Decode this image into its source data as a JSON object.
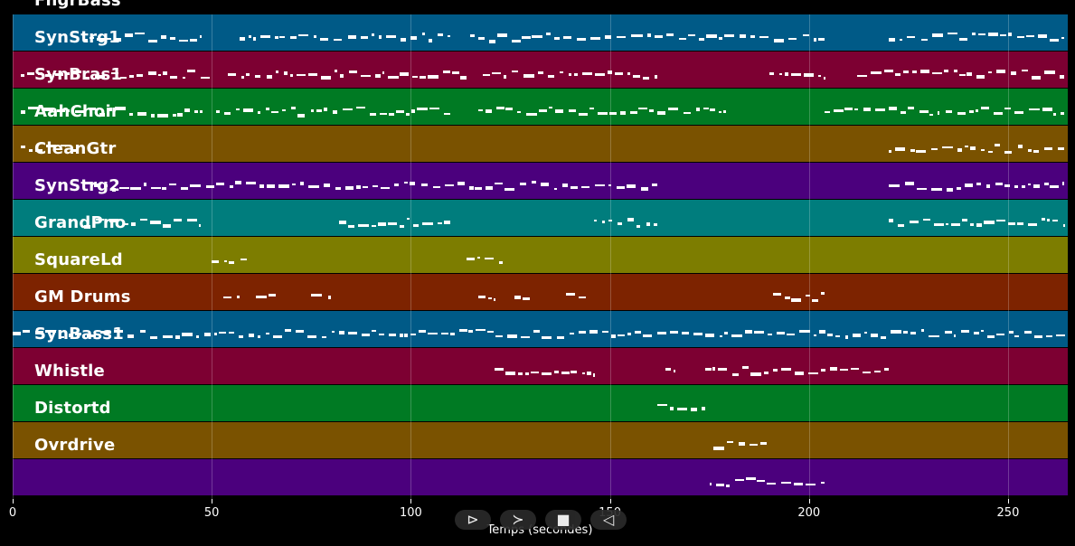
{
  "tracks": [
    {
      "name": "FngrBass",
      "color": "#005a87"
    },
    {
      "name": "SynStrg1",
      "color": "#7d0032"
    },
    {
      "name": "SynBras1",
      "color": "#007a23"
    },
    {
      "name": "AahChoir",
      "color": "#7a5200"
    },
    {
      "name": "CleanGtr",
      "color": "#4b007d"
    },
    {
      "name": "SynStrg2",
      "color": "#007d7d"
    },
    {
      "name": "GrandPno",
      "color": "#7d7d00"
    },
    {
      "name": "SquareLd",
      "color": "#7d2300"
    },
    {
      "name": "GM Drums",
      "color": "#005a87"
    },
    {
      "name": "SynBass1",
      "color": "#7d0032"
    },
    {
      "name": "Whistle",
      "color": "#007a23"
    },
    {
      "name": "Distortd",
      "color": "#7a5200"
    },
    {
      "name": "Ovrdrive",
      "color": "#4b007d"
    }
  ],
  "axis": {
    "xlabel": "Temps (secondes)",
    "xmin": 0,
    "xmax": 265,
    "ticks": [
      0,
      50,
      100,
      150,
      200,
      250
    ]
  },
  "controls": [
    {
      "name": "play-icon",
      "glyph": "⊳"
    },
    {
      "name": "forward-icon",
      "glyph": "≻"
    },
    {
      "name": "stop-icon",
      "glyph": "■"
    },
    {
      "name": "back-icon",
      "glyph": "◁"
    }
  ],
  "activity": [
    [
      [
        18,
        47
      ],
      [
        57,
        110
      ],
      [
        115,
        205
      ],
      [
        220,
        264
      ]
    ],
    [
      [
        2,
        50
      ],
      [
        54,
        114
      ],
      [
        118,
        162
      ],
      [
        190,
        204
      ],
      [
        212,
        264
      ]
    ],
    [
      [
        2,
        48
      ],
      [
        51,
        110
      ],
      [
        117,
        180
      ],
      [
        204,
        264
      ]
    ],
    [
      [
        2,
        18
      ],
      [
        220,
        264
      ]
    ],
    [
      [
        18,
        162
      ],
      [
        220,
        264
      ]
    ],
    [
      [
        18,
        47
      ],
      [
        82,
        110
      ],
      [
        146,
        162
      ],
      [
        220,
        264
      ]
    ],
    [
      [
        50,
        59
      ],
      [
        114,
        123
      ]
    ],
    [
      [
        53,
        57
      ],
      [
        61,
        66
      ],
      [
        75,
        80
      ],
      [
        117,
        121
      ],
      [
        126,
        130
      ],
      [
        139,
        144
      ],
      [
        191,
        204
      ]
    ],
    [
      [
        0,
        265
      ]
    ],
    [
      [
        121,
        146
      ],
      [
        164,
        166
      ],
      [
        174,
        220
      ]
    ],
    [
      [
        162,
        175
      ]
    ],
    [
      [
        176,
        190
      ]
    ],
    [
      [
        175,
        204
      ]
    ]
  ]
}
